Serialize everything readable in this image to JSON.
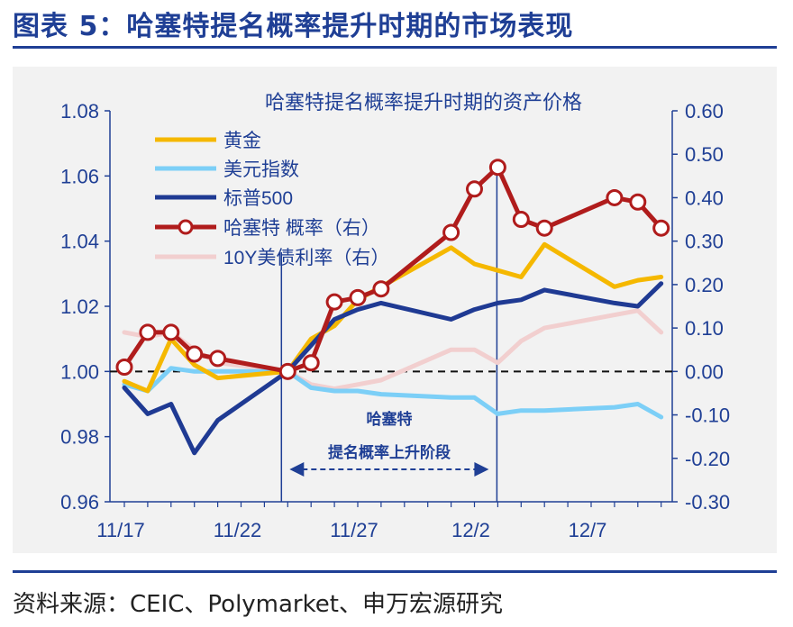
{
  "figure_title": "图表 5：哈塞特提名概率提升时期的市场表现",
  "source_note": "资料来源：CEIC、Polymarket、申万宏源研究",
  "chart_data": {
    "type": "line",
    "title": "哈塞特提名概率提升时期的资产价格",
    "x_tick_labels": [
      "11/17",
      "11/22",
      "11/27",
      "12/2",
      "12/7"
    ],
    "x_tick_index": [
      0,
      5,
      10,
      15,
      20
    ],
    "y_left": {
      "min": 0.96,
      "max": 1.08,
      "ticks": [
        "0.96",
        "0.98",
        "1.00",
        "1.02",
        "1.04",
        "1.06",
        "1.08"
      ]
    },
    "y_right": {
      "min": -0.3,
      "max": 0.6,
      "ticks": [
        "-0.30",
        "-0.20",
        "-0.10",
        "0.00",
        "0.10",
        "0.20",
        "0.30",
        "0.40",
        "0.50",
        "0.60"
      ]
    },
    "series": [
      {
        "name": "黄金",
        "axis": "left",
        "color": "#f5b800",
        "x": [
          0,
          1,
          2,
          3,
          4,
          7,
          8,
          9,
          10,
          11,
          14,
          15,
          16,
          17,
          18,
          21,
          22,
          23
        ],
        "values": [
          0.997,
          0.994,
          1.01,
          1.002,
          0.998,
          1.0,
          1.01,
          1.014,
          1.022,
          1.026,
          1.038,
          1.033,
          1.031,
          1.029,
          1.039,
          1.026,
          1.028,
          1.029
        ]
      },
      {
        "name": "美元指数",
        "axis": "left",
        "color": "#7ccff7",
        "x": [
          0,
          1,
          2,
          3,
          4,
          7,
          8,
          9,
          10,
          11,
          14,
          15,
          16,
          17,
          18,
          21,
          22,
          23
        ],
        "values": [
          0.996,
          0.994,
          1.001,
          1.0,
          1.0,
          1.0,
          0.995,
          0.994,
          0.994,
          0.993,
          0.992,
          0.992,
          0.987,
          0.988,
          0.988,
          0.989,
          0.99,
          0.986
        ]
      },
      {
        "name": "标普500",
        "axis": "left",
        "color": "#1f3a93",
        "x": [
          0,
          1,
          2,
          3,
          4,
          7,
          8,
          9,
          10,
          11,
          14,
          15,
          16,
          17,
          18,
          21,
          22,
          23
        ],
        "values": [
          0.995,
          0.987,
          0.99,
          0.975,
          0.985,
          1.0,
          1.008,
          1.016,
          1.019,
          1.021,
          1.016,
          1.019,
          1.021,
          1.022,
          1.025,
          1.021,
          1.02,
          1.027
        ]
      },
      {
        "name": "哈塞特 概率（右）",
        "axis": "right",
        "color": "#b01c1c",
        "marker": "circle",
        "x": [
          0,
          1,
          2,
          3,
          4,
          7,
          8,
          9,
          10,
          11,
          14,
          15,
          16,
          17,
          18,
          21,
          22,
          23
        ],
        "values": [
          0.01,
          0.09,
          0.09,
          0.04,
          0.03,
          0.0,
          0.02,
          0.16,
          0.17,
          0.19,
          0.32,
          0.42,
          0.47,
          0.35,
          0.33,
          0.4,
          0.39,
          0.33
        ]
      },
      {
        "name": "10Y美债利率（右）",
        "axis": "right",
        "color": "#f2cfcf",
        "x": [
          0,
          1,
          2,
          3,
          4,
          7,
          8,
          9,
          10,
          11,
          14,
          15,
          16,
          17,
          18,
          21,
          22,
          23
        ],
        "values": [
          0.09,
          0.08,
          0.09,
          0.05,
          0.02,
          0.0,
          -0.03,
          -0.04,
          -0.03,
          -0.02,
          0.05,
          0.05,
          0.02,
          0.07,
          0.1,
          0.13,
          0.14,
          0.09
        ]
      }
    ],
    "annotation": {
      "line1": "哈塞特",
      "line2": "提名概率上升阶段",
      "start_index": 7,
      "end_index": 16
    }
  }
}
